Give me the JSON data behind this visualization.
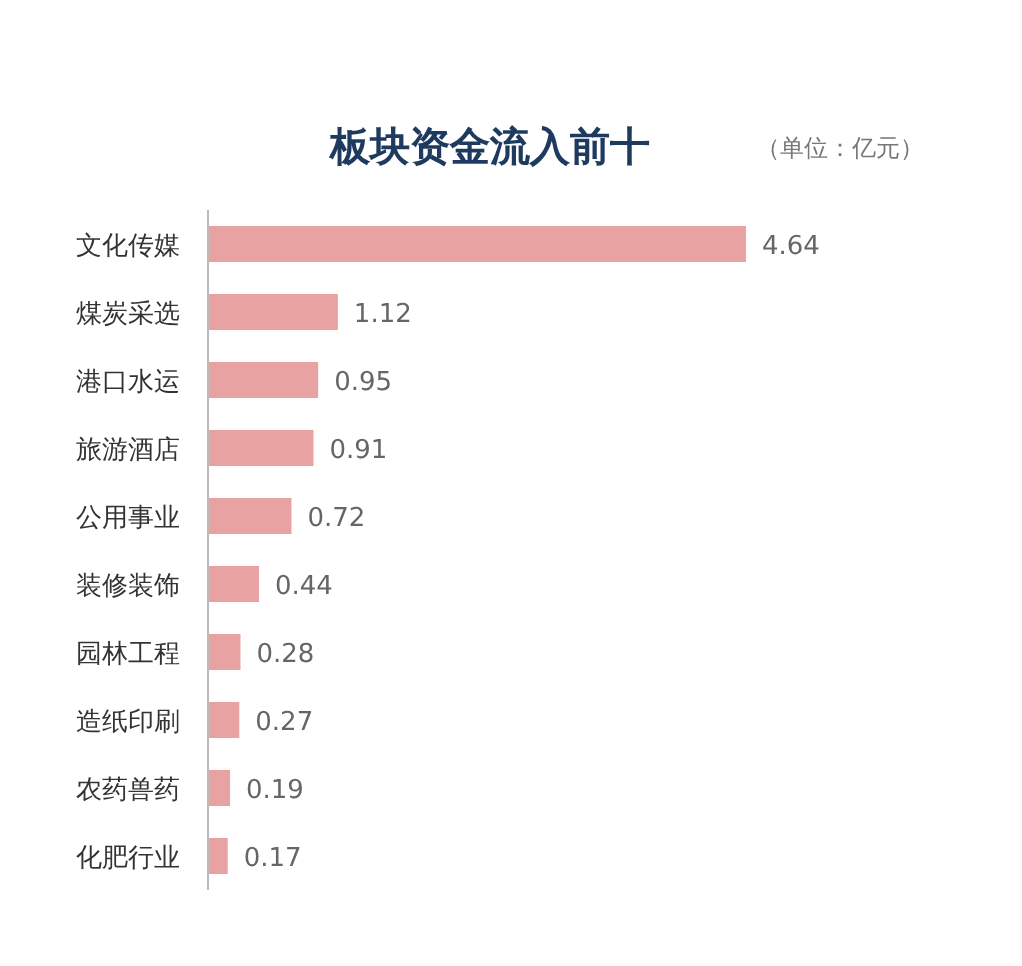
{
  "chart_data": {
    "type": "bar",
    "orientation": "horizontal",
    "title": "板块资金流入前十",
    "subtitle": "（单位：亿元）",
    "categories": [
      "文化传媒",
      "煤炭采选",
      "港口水运",
      "旅游酒店",
      "公用事业",
      "装修装饰",
      "园林工程",
      "造纸印刷",
      "农药兽药",
      "化肥行业"
    ],
    "values": [
      4.64,
      1.12,
      0.95,
      0.91,
      0.72,
      0.44,
      0.28,
      0.27,
      0.19,
      0.17
    ],
    "color": "#e8a2a2",
    "data_labels": true
  }
}
